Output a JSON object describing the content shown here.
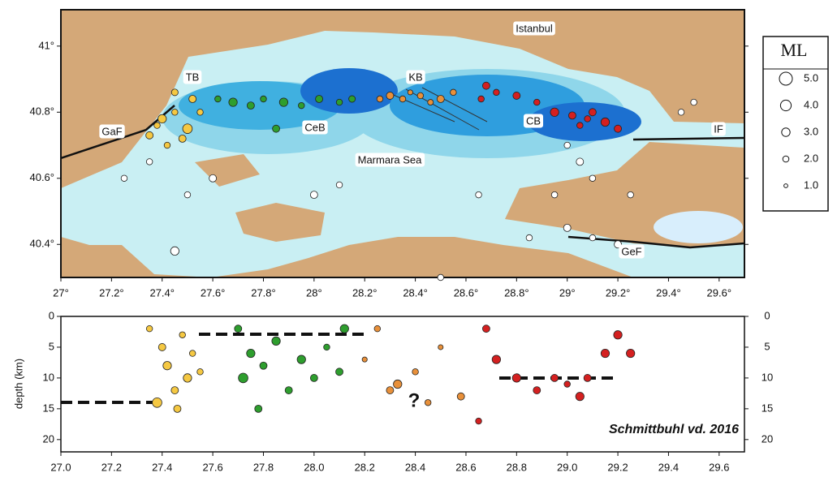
{
  "chart_data": [
    {
      "type": "map",
      "xlim": [
        27,
        29.7
      ],
      "ylim": [
        40.3,
        41.11
      ],
      "xticks": [
        {
          "value": 27,
          "label": "27°"
        },
        {
          "value": 27.2,
          "label": "27.2°"
        },
        {
          "value": 27.4,
          "label": "27.4°"
        },
        {
          "value": 27.6,
          "label": "27.6°"
        },
        {
          "value": 27.8,
          "label": "27.8°"
        },
        {
          "value": 28,
          "label": "28°"
        },
        {
          "value": 28.2,
          "label": "28.2°"
        },
        {
          "value": 28.4,
          "label": "28.4°"
        },
        {
          "value": 28.6,
          "label": "28.6°"
        },
        {
          "value": 28.8,
          "label": "28.8°"
        },
        {
          "value": 29,
          "label": "29°"
        },
        {
          "value": 29.2,
          "label": "29.2°"
        },
        {
          "value": 29.4,
          "label": "29.4°"
        },
        {
          "value": 29.6,
          "label": "29.6°"
        }
      ],
      "yticks": [
        {
          "value": 40.4,
          "label": "40.4°"
        },
        {
          "value": 40.6,
          "label": "40.6°"
        },
        {
          "value": 40.8,
          "label": "40.8°"
        },
        {
          "value": 41,
          "label": "41°"
        }
      ],
      "labels": [
        "TB",
        "KB",
        "GaF",
        "CeB",
        "CB",
        "IF",
        "Marmara Sea",
        "Istanbul",
        "GeF"
      ],
      "legend": {
        "title": "ML",
        "entries": [
          {
            "value": 5,
            "label": "5.0"
          },
          {
            "value": 4,
            "label": "4.0"
          },
          {
            "value": 3,
            "label": "3.0"
          },
          {
            "value": 2,
            "label": "2.0"
          },
          {
            "value": 1,
            "label": "1.0"
          }
        ]
      },
      "series": [
        {
          "color": "#f5c842",
          "x": [
            27.35,
            27.4,
            27.45,
            27.5,
            27.42,
            27.52,
            27.38,
            27.48,
            27.55,
            27.45
          ],
          "values": [
            40.73,
            40.78,
            40.8,
            40.75,
            40.7,
            40.84,
            40.76,
            40.72,
            40.8,
            40.86
          ],
          "sizes": [
            2.5,
            3,
            2,
            3.5,
            2,
            2.5,
            2,
            2.5,
            2,
            2.2
          ]
        },
        {
          "color": "#2e9e2e",
          "x": [
            27.62,
            27.68,
            27.75,
            27.8,
            27.88,
            27.95,
            28.02,
            28.1,
            28.15,
            27.85
          ],
          "values": [
            40.84,
            40.83,
            40.82,
            40.84,
            40.83,
            40.82,
            40.84,
            40.83,
            40.84,
            40.75
          ],
          "sizes": [
            2,
            3,
            2.5,
            2,
            3,
            2,
            2.5,
            2,
            2.2,
            2.5
          ]
        },
        {
          "color": "#e8903a",
          "x": [
            28.26,
            28.3,
            28.35,
            28.42,
            28.5,
            28.55,
            28.46,
            28.38
          ],
          "values": [
            40.84,
            40.85,
            40.84,
            40.85,
            40.84,
            40.86,
            40.83,
            40.86
          ],
          "sizes": [
            2,
            2.5,
            2,
            2,
            2.5,
            2,
            1.8,
            1.5
          ]
        },
        {
          "color": "#d42020",
          "x": [
            28.68,
            28.72,
            28.8,
            28.88,
            28.95,
            29.02,
            29.08,
            29.15,
            29.2,
            29.1,
            28.66,
            29.05
          ],
          "values": [
            40.88,
            40.86,
            40.85,
            40.83,
            40.8,
            40.79,
            40.78,
            40.77,
            40.75,
            40.8,
            40.84,
            40.76
          ],
          "sizes": [
            2.5,
            2,
            2.5,
            2,
            3,
            2.5,
            2,
            3,
            2.5,
            2.5,
            2,
            2
          ]
        },
        {
          "color": "#ffffff",
          "x": [
            29.0,
            29.05,
            29.1,
            28.95,
            29.0,
            29.1,
            29.2,
            28.85,
            29.25,
            27.25,
            27.5,
            27.6,
            27.45,
            28.0,
            28.5,
            29.45,
            29.5,
            28.65,
            28.1,
            27.35
          ],
          "values": [
            40.7,
            40.65,
            40.6,
            40.55,
            40.45,
            40.42,
            40.4,
            40.42,
            40.55,
            40.6,
            40.55,
            40.6,
            40.38,
            40.55,
            40.3,
            40.8,
            40.83,
            40.55,
            40.58,
            40.65
          ],
          "sizes": [
            2,
            2.5,
            2,
            2,
            2.5,
            2,
            2.5,
            2,
            2,
            2,
            2,
            2.5,
            3,
            2.5,
            2,
            2,
            2,
            2,
            2,
            2
          ]
        }
      ]
    },
    {
      "type": "scatter",
      "xlim": [
        27,
        29.7
      ],
      "ylim": [
        22,
        0
      ],
      "y_label": "depth (km)",
      "xticks": [
        {
          "value": 27,
          "label": "27.0"
        },
        27.2,
        27.4,
        27.6,
        27.8,
        {
          "value": 28,
          "label": "28.0"
        },
        28.2,
        28.4,
        28.6,
        28.8,
        {
          "value": 29,
          "label": "29.0"
        },
        29.2,
        29.4,
        29.6
      ],
      "yticks": [
        0,
        5,
        10,
        15,
        20
      ],
      "annotations": [
        "?",
        "Schmittbuhl vd. 2016"
      ],
      "series": [
        {
          "color": "#f5c842",
          "x": [
            27.35,
            27.4,
            27.42,
            27.45,
            27.5,
            27.38,
            27.48,
            27.52,
            27.46,
            27.55
          ],
          "values": [
            2,
            5,
            8,
            12,
            10,
            14,
            3,
            6,
            15,
            9
          ],
          "sizes": [
            2,
            2.5,
            3,
            2.5,
            3,
            3.5,
            2,
            2,
            2.5,
            2
          ]
        },
        {
          "color": "#2e9e2e",
          "x": [
            27.7,
            27.75,
            27.72,
            27.8,
            27.85,
            27.9,
            27.95,
            28.0,
            28.05,
            28.12,
            27.78,
            28.1
          ],
          "values": [
            2,
            6,
            10,
            8,
            4,
            12,
            7,
            10,
            5,
            2,
            15,
            9
          ],
          "sizes": [
            2.5,
            3,
            3.5,
            2.5,
            3,
            2.5,
            3,
            2.5,
            2,
            3,
            2.5,
            2.5
          ]
        },
        {
          "color": "#e8903a",
          "x": [
            28.25,
            28.3,
            28.33,
            28.4,
            28.45,
            28.58,
            28.5,
            28.2
          ],
          "values": [
            2,
            12,
            11,
            9,
            14,
            13,
            5,
            7
          ],
          "sizes": [
            2,
            2.5,
            3,
            2,
            2,
            2.5,
            1.5,
            1.5
          ]
        },
        {
          "color": "#d42020",
          "x": [
            28.68,
            28.72,
            28.8,
            28.88,
            28.95,
            29.0,
            29.08,
            29.15,
            29.2,
            29.25,
            28.65,
            29.05
          ],
          "values": [
            2,
            7,
            10,
            12,
            10,
            11,
            10,
            6,
            3,
            6,
            17,
            13
          ],
          "sizes": [
            2.5,
            3,
            3,
            2.5,
            2.5,
            2,
            2.5,
            3,
            3,
            3,
            2,
            3
          ]
        }
      ]
    }
  ]
}
